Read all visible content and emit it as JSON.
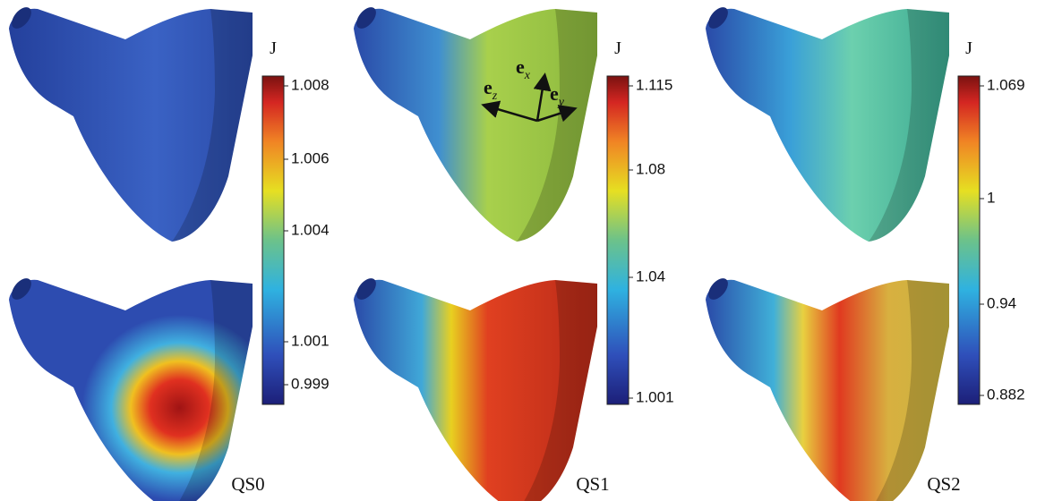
{
  "panels": [
    {
      "name": "QS0",
      "colorbar_title": "J",
      "ticks": [
        1.008,
        1.006,
        1.004,
        1.001,
        0.999
      ]
    },
    {
      "name": "QS1",
      "colorbar_title": "J",
      "ticks": [
        1.115,
        1.08,
        1.04,
        1.001
      ]
    },
    {
      "name": "QS2",
      "colorbar_title": "J",
      "ticks": [
        1.069,
        1,
        0.94,
        0.882
      ]
    }
  ],
  "axes_labels": [
    {
      "base": "e",
      "sub": "x"
    },
    {
      "base": "e",
      "sub": "y"
    },
    {
      "base": "e",
      "sub": "z"
    }
  ]
}
